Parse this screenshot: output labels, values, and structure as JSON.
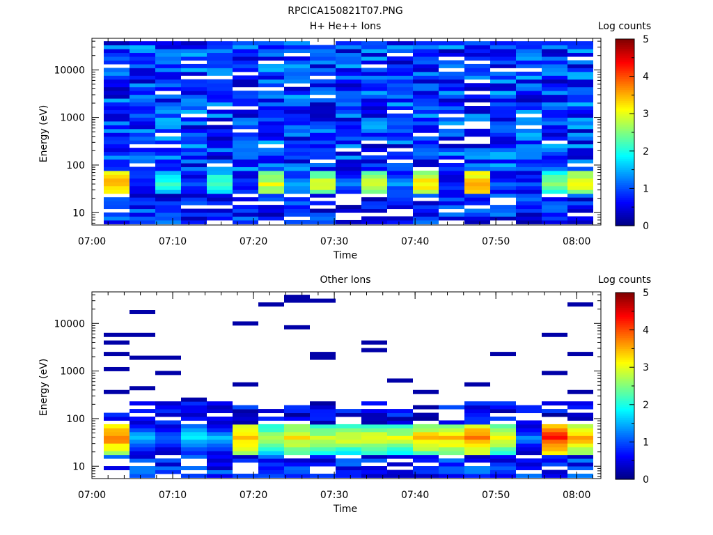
{
  "figure_title": "RPCICA150821T07.PNG",
  "chart_data": [
    {
      "type": "heatmap",
      "title": "H+ He++ Ions",
      "xlabel": "Time",
      "ylabel": "Energy (eV)",
      "y_scale": "log",
      "ylim": [
        5.5,
        46000
      ],
      "x_ticks": [
        "07:00",
        "07:10",
        "07:20",
        "07:30",
        "07:40",
        "07:50",
        "08:00"
      ],
      "y_ticks": [
        "10",
        "100",
        "1000",
        "10000"
      ],
      "time_range": [
        "07:00",
        "08:03"
      ],
      "colorbar": {
        "label": "Log counts",
        "range": [
          0,
          5
        ],
        "ticks": [
          "0",
          "1",
          "2",
          "3",
          "4",
          "5"
        ]
      },
      "time_bins": [
        "07:04",
        "07:07",
        "07:10",
        "07:14",
        "07:17",
        "07:20",
        "07:23",
        "07:27",
        "07:30",
        "07:33",
        "07:36",
        "07:40",
        "07:43",
        "07:46",
        "07:49",
        "07:53",
        "07:56",
        "07:59",
        "08:02"
      ],
      "energy_peak_values_log_counts": [
        3.6,
        0.8,
        2.2,
        1.0,
        2.4,
        1.0,
        3.0,
        1.5,
        3.0,
        1.2,
        3.1,
        1.4,
        3.3,
        0.9,
        3.7,
        1.0,
        1.0,
        2.7,
        3.2
      ],
      "background_level": "log counts ~0.5-1.5 across 60 eV - 40 keV",
      "note_empty_bins": "white bins = no counts"
    },
    {
      "type": "heatmap",
      "title": "Other Ions",
      "xlabel": "Time",
      "ylabel": "Energy (eV)",
      "y_scale": "log",
      "ylim": [
        5.5,
        46000
      ],
      "x_ticks": [
        "07:00",
        "07:10",
        "07:20",
        "07:30",
        "07:40",
        "07:50",
        "08:00"
      ],
      "y_ticks": [
        "10",
        "100",
        "1000",
        "10000"
      ],
      "colorbar": {
        "label": "Log counts",
        "range": [
          0,
          5
        ],
        "ticks": [
          "0",
          "1",
          "2",
          "3",
          "4",
          "5"
        ]
      },
      "energy_peak_values_log_counts": [
        3.8,
        1.6,
        1.2,
        1.8,
        1.5,
        3.6,
        2.8,
        3.2,
        2.9,
        3.0,
        3.0,
        3.0,
        3.4,
        3.4,
        3.8,
        3.2,
        1.2,
        4.2,
        3.6
      ],
      "sparse_high_energy_lines": "isolated low-count (log ~0.2) bins between 200 eV and 40 keV"
    }
  ],
  "colors": {
    "frame": "#000000",
    "background": "#ffffff"
  }
}
